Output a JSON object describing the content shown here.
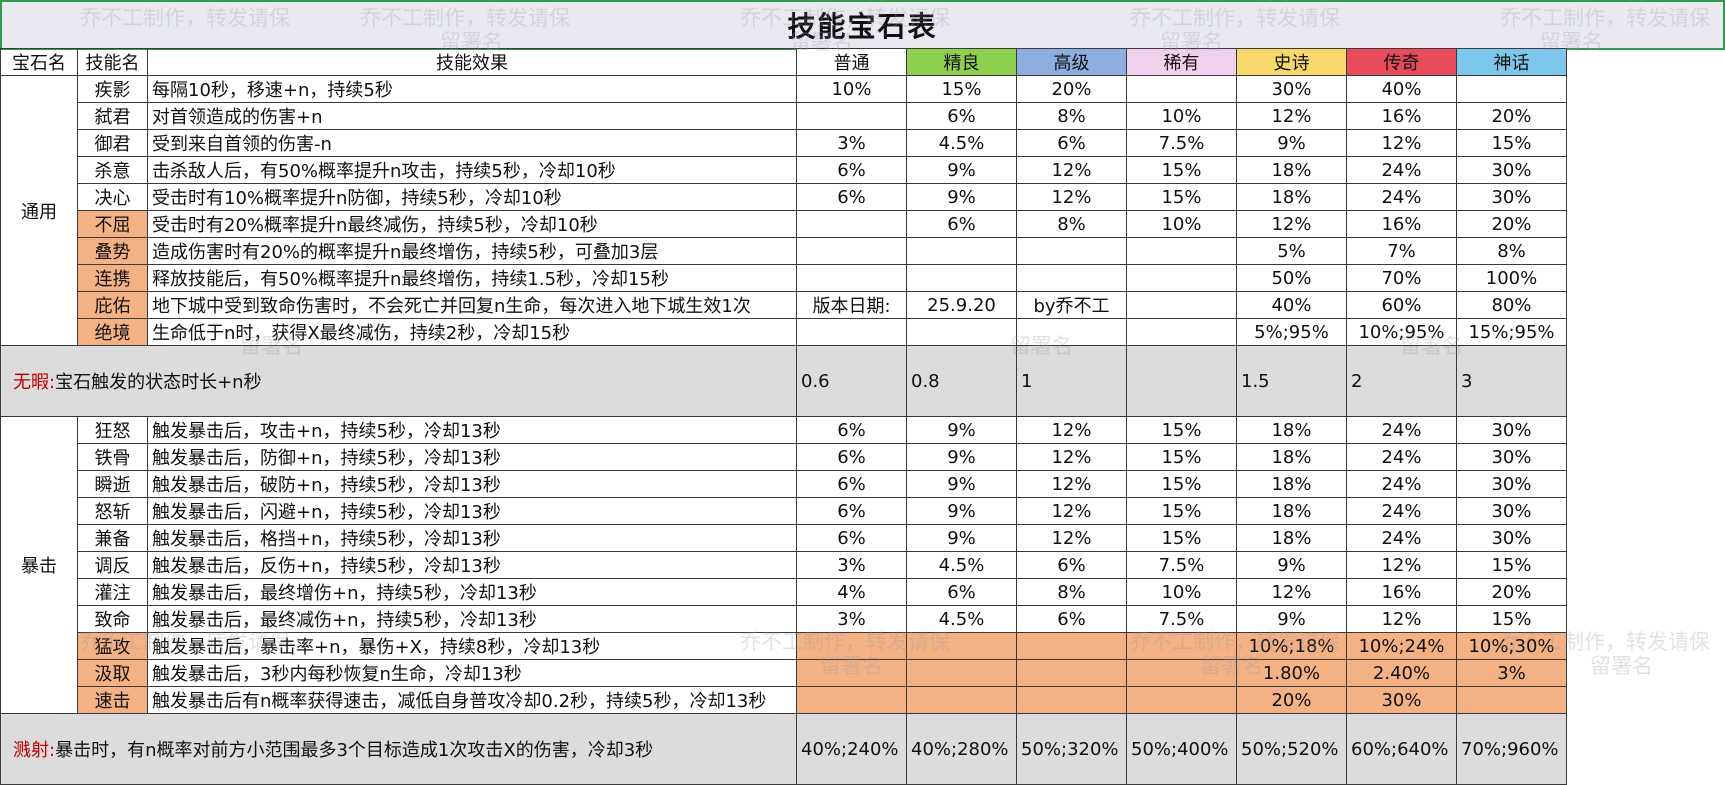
{
  "title": "技能宝石表",
  "headers": {
    "gem_group": "宝石名",
    "skill_name": "技能名",
    "effect": "技能效果",
    "rarities": [
      "普通",
      "精良",
      "高级",
      "稀有",
      "史诗",
      "传奇",
      "神话"
    ]
  },
  "rarity_colors": [
    "#ffffff",
    "#8fd14f",
    "#8eaee0",
    "#f0d0ea",
    "#f7d86b",
    "#e84c5a",
    "#7ec7ec"
  ],
  "groups": {
    "general": "通用",
    "crit": "暴击"
  },
  "general_rows": [
    {
      "name": "疾影",
      "effect": "每隔10秒，移速+n，持续5秒",
      "values": [
        "10%",
        "15%",
        "20%",
        "",
        "30%",
        "40%",
        ""
      ],
      "highlight": false
    },
    {
      "name": "弑君",
      "effect": "对首领造成的伤害+n",
      "values": [
        "",
        "6%",
        "8%",
        "10%",
        "12%",
        "16%",
        "20%"
      ],
      "highlight": false
    },
    {
      "name": "御君",
      "effect": "受到来自首领的伤害-n",
      "values": [
        "3%",
        "4.5%",
        "6%",
        "7.5%",
        "9%",
        "12%",
        "15%"
      ],
      "highlight": false
    },
    {
      "name": "杀意",
      "effect": "击杀敌人后，有50%概率提升n攻击，持续5秒，冷却10秒",
      "values": [
        "6%",
        "9%",
        "12%",
        "15%",
        "18%",
        "24%",
        "30%"
      ],
      "highlight": false
    },
    {
      "name": "决心",
      "effect": "受击时有10%概率提升n防御，持续5秒，冷却10秒",
      "values": [
        "6%",
        "9%",
        "12%",
        "15%",
        "18%",
        "24%",
        "30%"
      ],
      "highlight": false
    },
    {
      "name": "不屈",
      "effect": "受击时有20%概率提升n最终减伤，持续5秒，冷却10秒",
      "values": [
        "",
        "6%",
        "8%",
        "10%",
        "12%",
        "16%",
        "20%"
      ],
      "highlight": true
    },
    {
      "name": "叠势",
      "effect": "造成伤害时有20%的概率提升n最终增伤，持续5秒，可叠加3层",
      "values": [
        "",
        "",
        "",
        "",
        "5%",
        "7%",
        "8%"
      ],
      "highlight": true
    },
    {
      "name": "连携",
      "effect": "释放技能后，有50%概率提升n最终增伤，持续1.5秒，冷却15秒",
      "values": [
        "",
        "",
        "",
        "",
        "50%",
        "70%",
        "100%"
      ],
      "highlight": true
    },
    {
      "name": "庇佑",
      "effect": "地下城中受到致命伤害时，不会死亡并回复n生命，每次进入地下城生效1次",
      "values": [
        "版本日期:",
        "25.9.20",
        "by乔不工",
        "",
        "40%",
        "60%",
        "80%"
      ],
      "highlight": true
    },
    {
      "name": "绝境",
      "effect": "生命低于n时，获得X最终减伤，持续2秒，冷却15秒",
      "values": [
        "",
        "",
        "",
        "",
        "5%;95%",
        "10%;95%",
        "15%;95%"
      ],
      "highlight": true
    }
  ],
  "flawless": {
    "label": "无暇:",
    "effect": "宝石触发的状态时长+n秒",
    "values": [
      "0.6",
      "0.8",
      "1",
      "",
      "1.5",
      "2",
      "3"
    ]
  },
  "crit_rows": [
    {
      "name": "狂怒",
      "effect": "触发暴击后，攻击+n，持续5秒，冷却13秒",
      "values": [
        "6%",
        "9%",
        "12%",
        "15%",
        "18%",
        "24%",
        "30%"
      ],
      "highlight": false
    },
    {
      "name": "铁骨",
      "effect": "触发暴击后，防御+n，持续5秒，冷却13秒",
      "values": [
        "6%",
        "9%",
        "12%",
        "15%",
        "18%",
        "24%",
        "30%"
      ],
      "highlight": false
    },
    {
      "name": "瞬逝",
      "effect": "触发暴击后，破防+n，持续5秒，冷却13秒",
      "values": [
        "6%",
        "9%",
        "12%",
        "15%",
        "18%",
        "24%",
        "30%"
      ],
      "highlight": false
    },
    {
      "name": "怒斩",
      "effect": "触发暴击后，闪避+n，持续5秒，冷却13秒",
      "values": [
        "6%",
        "9%",
        "12%",
        "15%",
        "18%",
        "24%",
        "30%"
      ],
      "highlight": false
    },
    {
      "name": "兼备",
      "effect": "触发暴击后，格挡+n，持续5秒，冷却13秒",
      "values": [
        "6%",
        "9%",
        "12%",
        "15%",
        "18%",
        "24%",
        "30%"
      ],
      "highlight": false
    },
    {
      "name": "调反",
      "effect": "触发暴击后，反伤+n，持续5秒，冷却13秒",
      "values": [
        "3%",
        "4.5%",
        "6%",
        "7.5%",
        "9%",
        "12%",
        "15%"
      ],
      "highlight": false
    },
    {
      "name": "灌注",
      "effect": "触发暴击后，最终增伤+n，持续5秒，冷却13秒",
      "values": [
        "4%",
        "6%",
        "8%",
        "10%",
        "12%",
        "16%",
        "20%"
      ],
      "highlight": false
    },
    {
      "name": "致命",
      "effect": "触发暴击后，最终减伤+n，持续5秒，冷却13秒",
      "values": [
        "3%",
        "4.5%",
        "6%",
        "7.5%",
        "9%",
        "12%",
        "15%"
      ],
      "highlight": false
    },
    {
      "name": "猛攻",
      "effect": "触发暴击后，暴击率+n，暴伤+X，持续8秒，冷却13秒",
      "values": [
        "",
        "",
        "",
        "",
        "10%;18%",
        "10%;24%",
        "10%;30%"
      ],
      "highlight": true
    },
    {
      "name": "汲取",
      "effect": "触发暴击后，3秒内每秒恢复n生命，冷却13秒",
      "values": [
        "",
        "",
        "",
        "",
        "1.80%",
        "2.40%",
        "3%"
      ],
      "highlight": true
    },
    {
      "name": "速击",
      "effect": "触发暴击后有n概率获得速击，减低自身普攻冷却0.2秒，持续5秒，冷却13秒",
      "values": [
        "",
        "",
        "",
        "",
        "20%",
        "30%",
        ""
      ],
      "highlight": true
    }
  ],
  "splash": {
    "label": "溅射:",
    "effect": "暴击时，有n概率对前方小范围最多3个目标造成1次攻击X的伤害，冷却3秒",
    "values": [
      "40%;240%",
      "40%;280%",
      "50%;320%",
      "50%;400%",
      "50%;520%",
      "60%;640%",
      "70%;960%"
    ]
  },
  "watermark": {
    "line1": "乔不工制作，转发请保",
    "line2": "留署名"
  }
}
